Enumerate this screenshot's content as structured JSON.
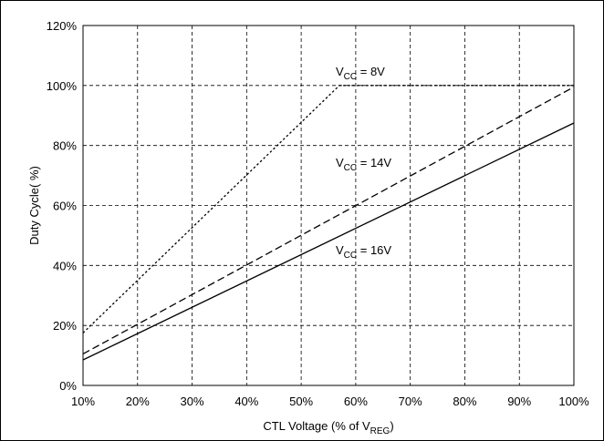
{
  "chart_data": {
    "type": "line",
    "xlabel": "CTL Voltage (% of V",
    "xlabel_sub": "REG",
    "xlabel_end": ")",
    "ylabel": "Duty Cycle( %)",
    "x_ticks": [
      "10%",
      "20%",
      "30%",
      "40%",
      "50%",
      "60%",
      "70%",
      "80%",
      "90%",
      "100%"
    ],
    "y_ticks": [
      "0%",
      "20%",
      "40%",
      "60%",
      "80%",
      "100%",
      "120%"
    ],
    "xlim": [
      10,
      100
    ],
    "ylim": [
      0,
      120
    ],
    "grid": true,
    "series": [
      {
        "name": "V_CC = 8V",
        "style": "dotted",
        "x": [
          10,
          57,
          100
        ],
        "y": [
          17.5,
          100,
          100
        ]
      },
      {
        "name": "V_CC = 14V",
        "style": "dashed",
        "x": [
          10,
          100
        ],
        "y": [
          10.5,
          99.5
        ]
      },
      {
        "name": "V_CC = 16V",
        "style": "solid",
        "x": [
          10,
          100
        ],
        "y": [
          8.5,
          87.5
        ]
      }
    ],
    "annotations": [
      {
        "pre": "V",
        "sub": "CC",
        "post": " = 8V",
        "series": 0
      },
      {
        "pre": "V",
        "sub": "CC",
        "post": " = 14V",
        "series": 1
      },
      {
        "pre": "V",
        "sub": "CC",
        "post": " = 16V",
        "series": 2
      }
    ]
  }
}
